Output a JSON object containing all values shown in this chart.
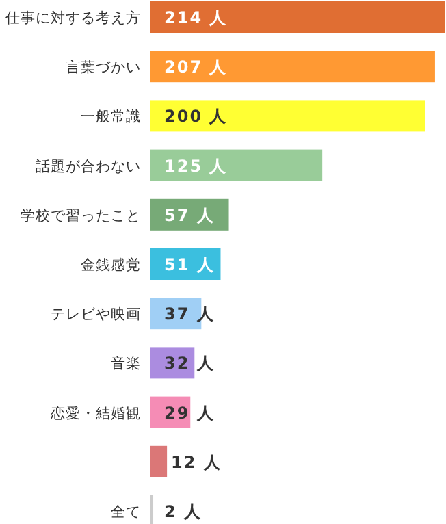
{
  "chart_data": {
    "type": "bar",
    "orientation": "horizontal",
    "categories": [
      "仕事に対する考え方",
      "言葉づかい",
      "一般常識",
      "話題が合わない",
      "学校で習ったこと",
      "金銭感覚",
      "テレビや映画",
      "音楽",
      "恋愛・結婚観",
      null,
      "全て"
    ],
    "values": [
      214,
      207,
      200,
      125,
      57,
      51,
      37,
      32,
      29,
      12,
      2
    ],
    "colors": [
      "#e06e33",
      "#ff9933",
      "#ffff33",
      "#99cc99",
      "#77aa77",
      "#3bbfdf",
      "#a0cff5",
      "#ab8ce0",
      "#f58cb5",
      "#db7777",
      "#cccccc"
    ],
    "value_labels": [
      "214 人",
      "207 人",
      "200 人",
      "125 人",
      "57 人",
      "51 人",
      "37 人",
      "32 人",
      "29 人",
      "12 人",
      "2 人"
    ],
    "grid": false
  }
}
